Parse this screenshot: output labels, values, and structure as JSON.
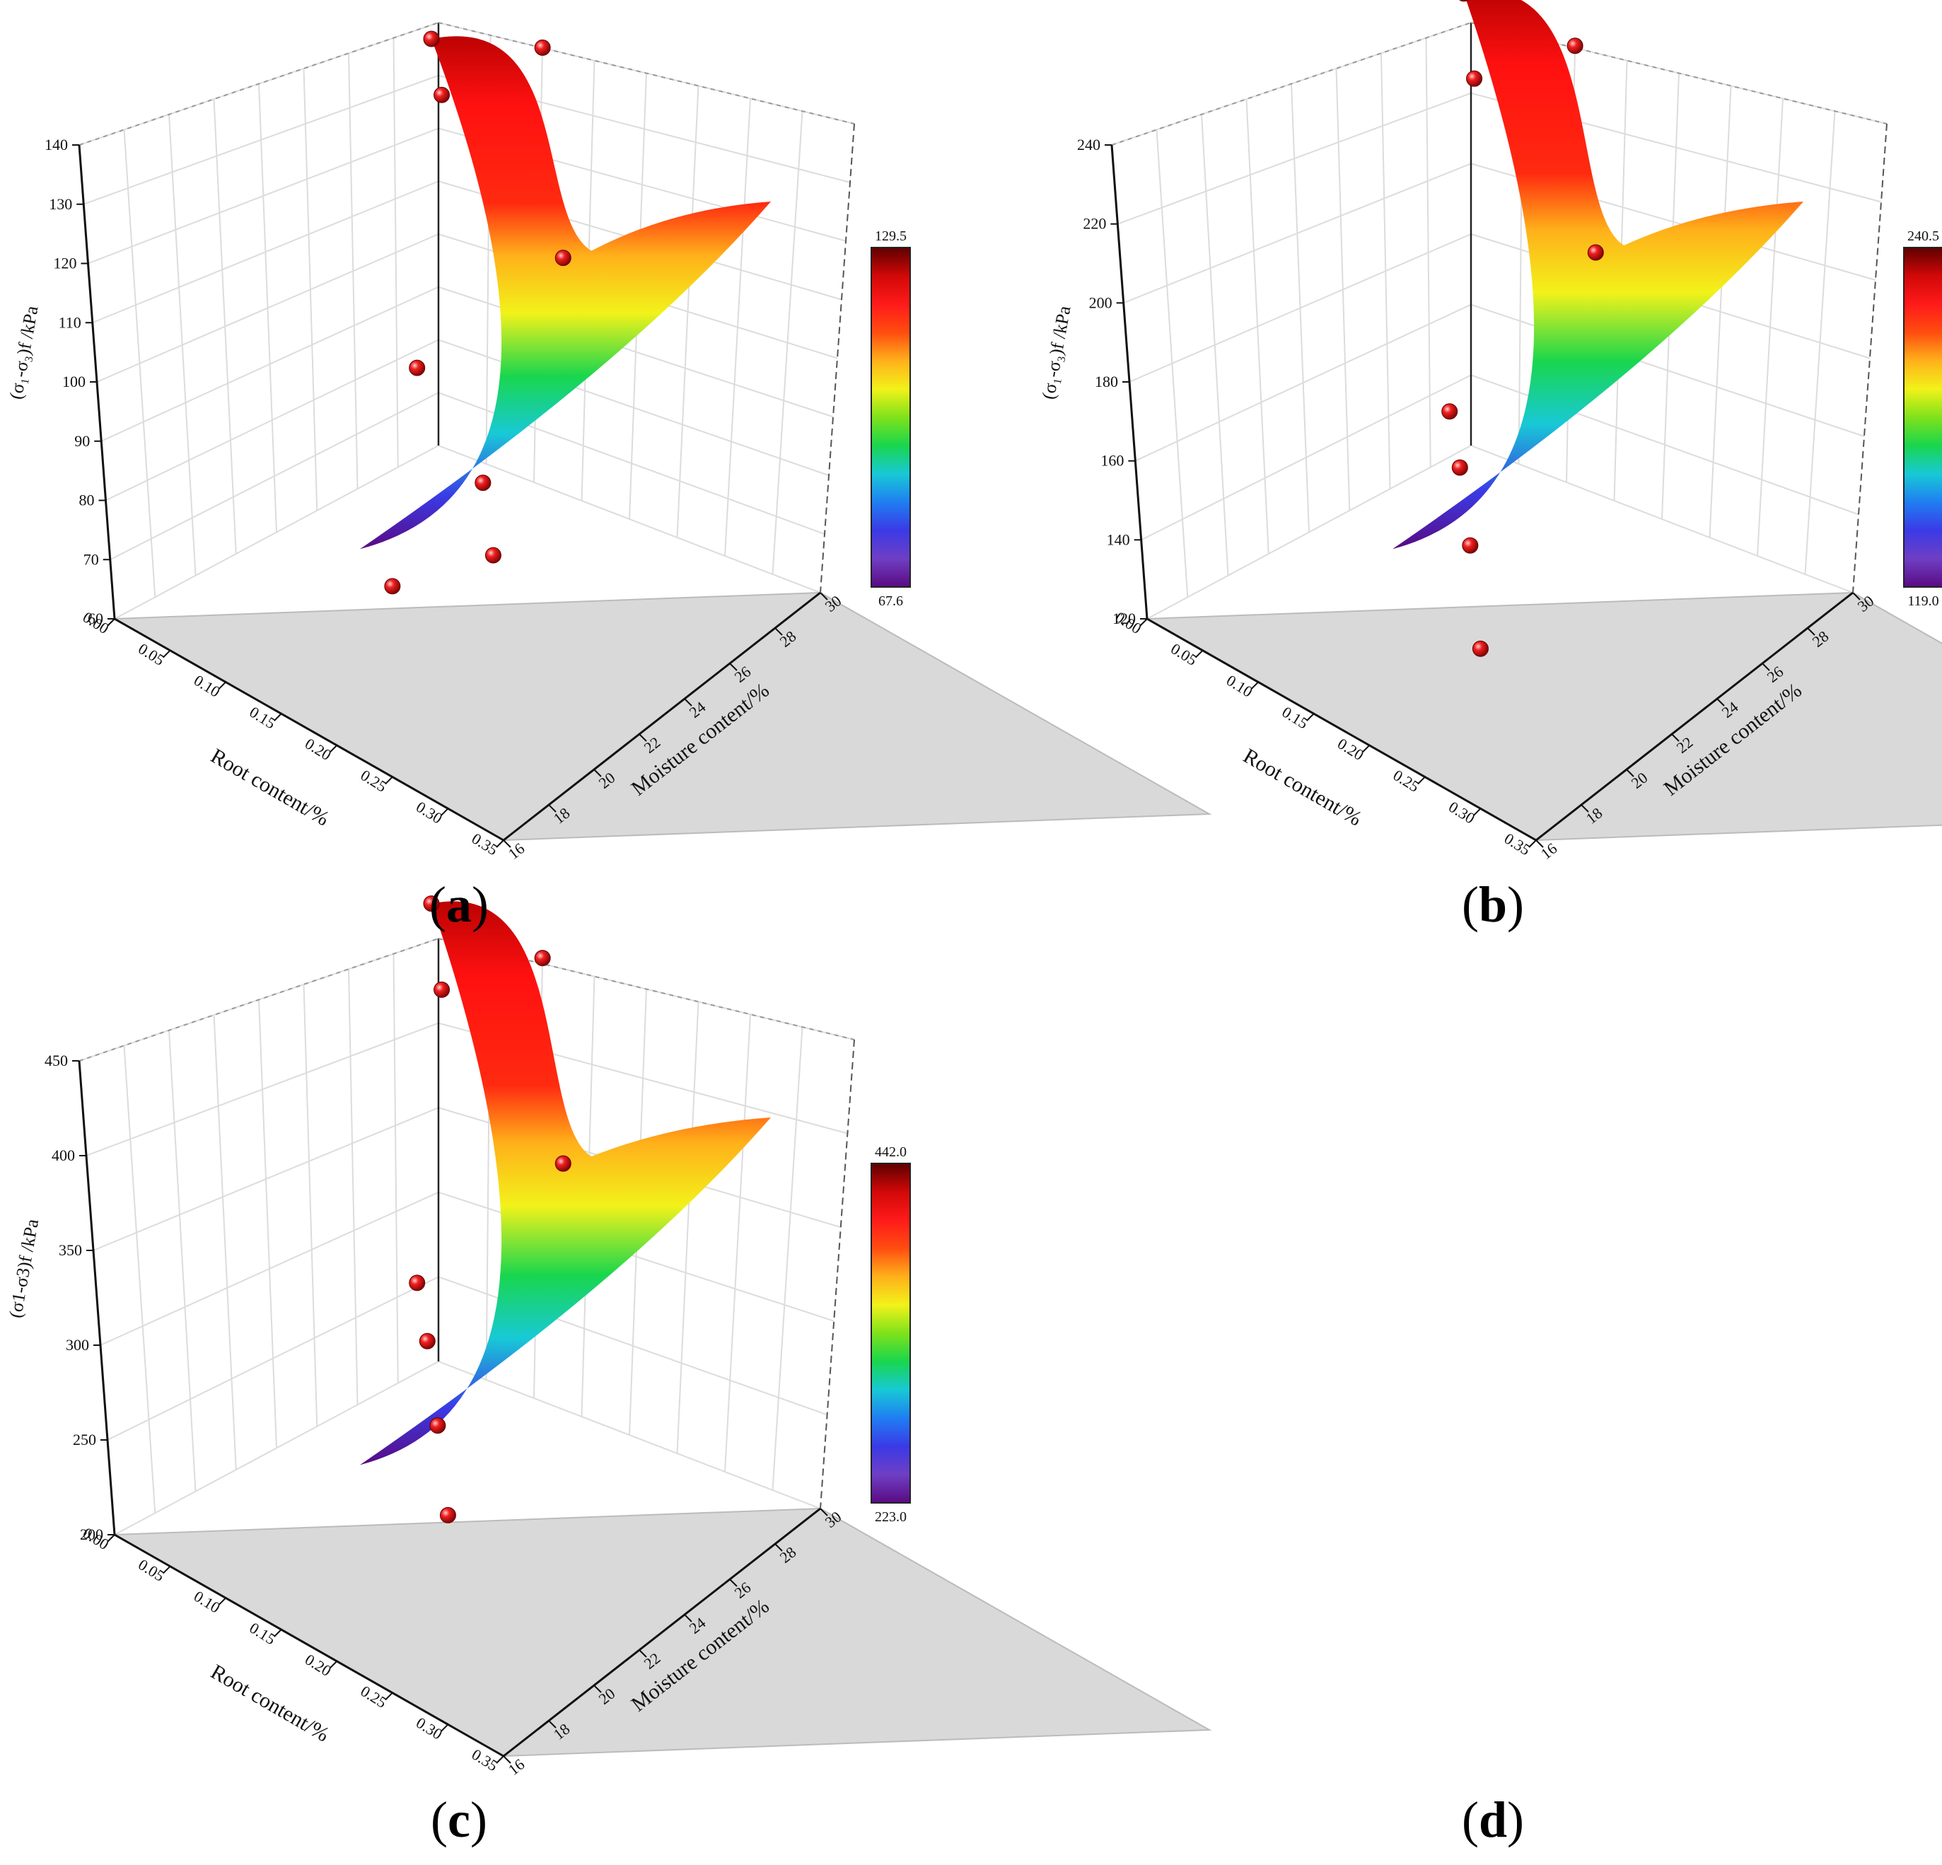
{
  "colors": {
    "spectrum": [
      "#5a0a82",
      "#6f3fc4",
      "#3a3ae6",
      "#1f7ef2",
      "#18c9d6",
      "#19d64d",
      "#7fe21a",
      "#f2f21a",
      "#ffb01a",
      "#ff4d10",
      "#ff1a1a",
      "#d10808",
      "#5e0000"
    ],
    "floor": "#d9d9d9",
    "point": "#e01010",
    "grid": "#dcdcdc"
  },
  "chart_data": [
    {
      "panel": "(a)",
      "caption": {
        "open": "(",
        "letter": "a",
        "close": ")"
      },
      "type": "surface3d",
      "zlabel": "(σ₁-σ₃)f /kPa",
      "xlabel": "Root content/%",
      "ylabel": "Moisture content/%",
      "x_ticks": [
        "0.00",
        "0.05",
        "0.10",
        "0.15",
        "0.20",
        "0.25",
        "0.30",
        "0.35"
      ],
      "y_ticks": [
        "16",
        "18",
        "20",
        "22",
        "24",
        "26",
        "28",
        "30"
      ],
      "z_ticks": [
        "60",
        "70",
        "80",
        "90",
        "100",
        "110",
        "120",
        "130",
        "140"
      ],
      "zlim": [
        60,
        140
      ],
      "colorbar": {
        "min": "67.6",
        "max": "129.5"
      },
      "points": [
        {
          "x": 0.0,
          "y": 30,
          "z": 121
        },
        {
          "x": 0.05,
          "y": 28,
          "z": 123
        },
        {
          "x": 0.1,
          "y": 30,
          "z": 131
        },
        {
          "x": 0.15,
          "y": 22,
          "z": 104
        },
        {
          "x": 0.2,
          "y": 26,
          "z": 117
        },
        {
          "x": 0.25,
          "y": 20,
          "z": 101
        },
        {
          "x": 0.25,
          "y": 16,
          "z": 95
        },
        {
          "x": 0.3,
          "y": 18,
          "z": 100
        }
      ]
    },
    {
      "panel": "(b)",
      "caption": {
        "open": "(",
        "letter": "b",
        "close": ")"
      },
      "type": "surface3d",
      "zlabel": "(σ₁-σ₃)f /kPa",
      "xlabel": "Root content/%",
      "ylabel": "Moisture content/%",
      "x_ticks": [
        "0.00",
        "0.05",
        "0.10",
        "0.15",
        "0.20",
        "0.25",
        "0.30",
        "0.35"
      ],
      "y_ticks": [
        "16",
        "18",
        "20",
        "22",
        "24",
        "26",
        "28",
        "30"
      ],
      "z_ticks": [
        "120",
        "140",
        "160",
        "180",
        "200",
        "220",
        "240"
      ],
      "zlim": [
        120,
        240
      ],
      "colorbar": {
        "min": "119.0",
        "max": "240.5"
      },
      "points": [
        {
          "x": 0.0,
          "y": 30,
          "z": 224
        },
        {
          "x": 0.05,
          "y": 28,
          "z": 219
        },
        {
          "x": 0.1,
          "y": 30,
          "z": 227
        },
        {
          "x": 0.15,
          "y": 22,
          "z": 174
        },
        {
          "x": 0.2,
          "y": 26,
          "z": 207
        },
        {
          "x": 0.2,
          "y": 20,
          "z": 177
        },
        {
          "x": 0.25,
          "y": 18,
          "z": 174
        },
        {
          "x": 0.3,
          "y": 16,
          "z": 164
        }
      ]
    },
    {
      "panel": "(c)",
      "caption": {
        "open": "(",
        "letter": "c",
        "close": ")"
      },
      "type": "surface3d",
      "zlabel": "(σ1-σ3)f /kPa",
      "xlabel": "Root content/%",
      "ylabel": "Moisture content/%",
      "x_ticks": [
        "0.00",
        "0.05",
        "0.10",
        "0.15",
        "0.20",
        "0.25",
        "0.30",
        "0.35"
      ],
      "y_ticks": [
        "16",
        "18",
        "20",
        "22",
        "24",
        "26",
        "28",
        "30"
      ],
      "z_ticks": [
        "200",
        "250",
        "300",
        "350",
        "400",
        "450"
      ],
      "zlim": [
        200,
        450
      ],
      "colorbar": {
        "min": "223.0",
        "max": "442.0"
      },
      "points": [
        {
          "x": 0.0,
          "y": 30,
          "z": 420
        },
        {
          "x": 0.05,
          "y": 28,
          "z": 409
        },
        {
          "x": 0.1,
          "y": 30,
          "z": 425
        },
        {
          "x": 0.15,
          "y": 22,
          "z": 338
        },
        {
          "x": 0.2,
          "y": 26,
          "z": 384
        },
        {
          "x": 0.2,
          "y": 20,
          "z": 343
        },
        {
          "x": 0.25,
          "y": 18,
          "z": 333
        },
        {
          "x": 0.3,
          "y": 16,
          "z": 320
        }
      ]
    }
  ],
  "panel_d": {
    "caption": {
      "open": "(",
      "letter": "d",
      "close": ")"
    }
  }
}
